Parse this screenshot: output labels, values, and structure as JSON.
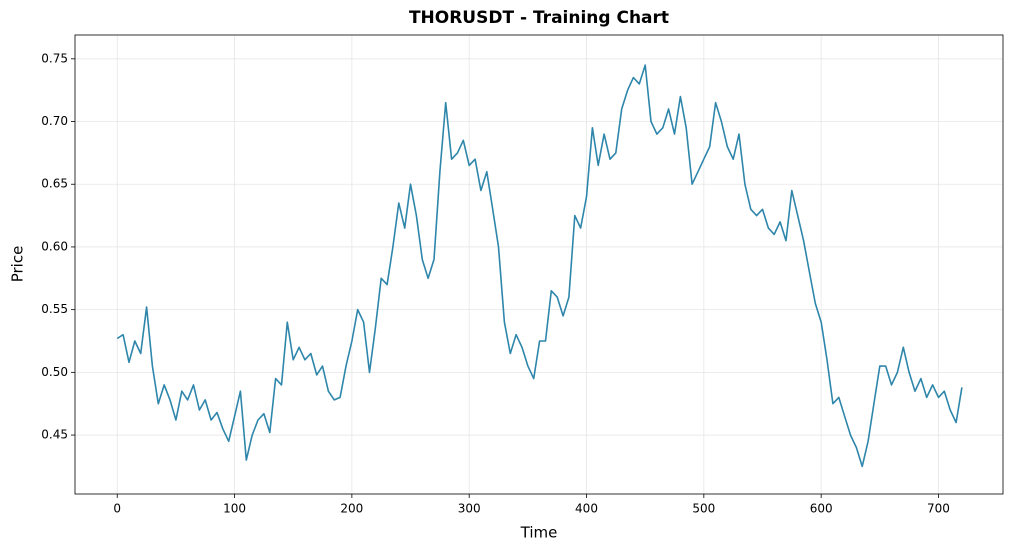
{
  "chart_data": {
    "type": "line",
    "title": "THORUSDT - Training Chart",
    "x_label": "Time",
    "y_label": "Price",
    "x": [
      0,
      5,
      10,
      15,
      20,
      25,
      30,
      35,
      40,
      45,
      50,
      55,
      60,
      65,
      70,
      75,
      80,
      85,
      90,
      95,
      100,
      105,
      110,
      115,
      120,
      125,
      130,
      135,
      140,
      145,
      150,
      155,
      160,
      165,
      170,
      175,
      180,
      185,
      190,
      195,
      200,
      205,
      210,
      215,
      220,
      225,
      230,
      235,
      240,
      245,
      250,
      255,
      260,
      265,
      270,
      275,
      280,
      285,
      290,
      295,
      300,
      305,
      310,
      315,
      320,
      325,
      330,
      335,
      340,
      345,
      350,
      355,
      360,
      365,
      370,
      375,
      380,
      385,
      390,
      395,
      400,
      405,
      410,
      415,
      420,
      425,
      430,
      435,
      440,
      445,
      450,
      455,
      460,
      465,
      470,
      475,
      480,
      485,
      490,
      495,
      500,
      505,
      510,
      515,
      520,
      525,
      530,
      535,
      540,
      545,
      550,
      555,
      560,
      565,
      570,
      575,
      580,
      585,
      590,
      595,
      600,
      605,
      610,
      615,
      620,
      625,
      630,
      635,
      640,
      645,
      650,
      655,
      660,
      665,
      670,
      675,
      680,
      685,
      690,
      695,
      700,
      705,
      710,
      715,
      720
    ],
    "series": [
      {
        "color": "#2e86ab",
        "values": [
          0.527,
          0.53,
          0.508,
          0.525,
          0.515,
          0.552,
          0.505,
          0.475,
          0.49,
          0.478,
          0.462,
          0.485,
          0.478,
          0.49,
          0.47,
          0.478,
          0.462,
          0.468,
          0.455,
          0.445,
          0.465,
          0.485,
          0.43,
          0.45,
          0.462,
          0.467,
          0.452,
          0.495,
          0.49,
          0.54,
          0.51,
          0.52,
          0.51,
          0.515,
          0.498,
          0.505,
          0.485,
          0.478,
          0.48,
          0.505,
          0.525,
          0.55,
          0.54,
          0.5,
          0.535,
          0.575,
          0.57,
          0.6,
          0.635,
          0.615,
          0.65,
          0.625,
          0.59,
          0.575,
          0.59,
          0.66,
          0.715,
          0.67,
          0.675,
          0.685,
          0.665,
          0.67,
          0.645,
          0.66,
          0.63,
          0.6,
          0.54,
          0.515,
          0.53,
          0.52,
          0.505,
          0.495,
          0.525,
          0.525,
          0.565,
          0.56,
          0.545,
          0.56,
          0.625,
          0.615,
          0.64,
          0.695,
          0.665,
          0.69,
          0.67,
          0.675,
          0.71,
          0.725,
          0.735,
          0.73,
          0.745,
          0.7,
          0.69,
          0.695,
          0.71,
          0.69,
          0.72,
          0.695,
          0.65,
          0.66,
          0.67,
          0.68,
          0.715,
          0.7,
          0.68,
          0.67,
          0.69,
          0.65,
          0.63,
          0.625,
          0.63,
          0.615,
          0.61,
          0.62,
          0.605,
          0.645,
          0.625,
          0.605,
          0.58,
          0.555,
          0.54,
          0.51,
          0.475,
          0.48,
          0.465,
          0.45,
          0.44,
          0.425,
          0.445,
          0.475,
          0.505,
          0.505,
          0.49,
          0.5,
          0.52,
          0.5,
          0.485,
          0.495,
          0.48,
          0.49,
          0.48,
          0.485,
          0.47,
          0.46,
          0.488
        ]
      }
    ],
    "xlim": [
      -36,
      755
    ],
    "ylim": [
      0.403,
      0.769
    ],
    "xticks": [
      0,
      100,
      200,
      300,
      400,
      500,
      600,
      700
    ],
    "yticks": [
      0.45,
      {
        "value": 0.5,
        "label": "0.50"
      },
      0.55,
      {
        "value": 0.6,
        "label": "0.60"
      },
      0.65,
      {
        "value": 0.7,
        "label": "0.70"
      },
      0.75
    ],
    "grid": true
  }
}
